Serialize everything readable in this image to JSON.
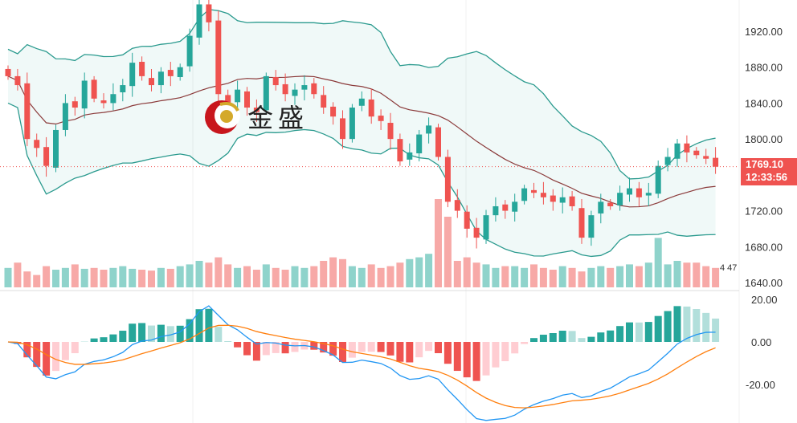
{
  "chart_data": {
    "type": "candlestick",
    "title": "",
    "price_axis": {
      "ticks": [
        "1920.00",
        "1880.00",
        "1840.00",
        "1800.00",
        "1760.00",
        "1720.00",
        "1680.00",
        "1640.00"
      ],
      "range": [
        1640,
        1920
      ]
    },
    "macd_axis": {
      "ticks": [
        "20.00",
        "0.00",
        "-20.00"
      ],
      "range": [
        -20,
        20
      ]
    },
    "last_price": "1769.10",
    "countdown": "12:33:56",
    "volume_legend": "4 47",
    "closes": [
      1870,
      1860,
      1800,
      1790,
      1770,
      1810,
      1840,
      1835,
      1865,
      1845,
      1840,
      1850,
      1860,
      1885,
      1870,
      1860,
      1875,
      1870,
      1880,
      1915,
      1950,
      1930,
      1850,
      1840,
      1855,
      1835,
      1830,
      1870,
      1860,
      1850,
      1855,
      1860,
      1850,
      1835,
      1825,
      1800,
      1835,
      1845,
      1825,
      1820,
      1800,
      1775,
      1785,
      1805,
      1815,
      1780,
      1730,
      1720,
      1700,
      1690,
      1715,
      1725,
      1720,
      1730,
      1745,
      1740,
      1735,
      1730,
      1735,
      1725,
      1690,
      1715,
      1730,
      1725,
      1740,
      1745,
      1735,
      1740,
      1770,
      1780,
      1795,
      1785,
      1782,
      1778,
      1769.1
    ],
    "volumes": [
      22,
      28,
      18,
      14,
      24,
      20,
      22,
      26,
      21,
      22,
      20,
      22,
      24,
      21,
      20,
      19,
      22,
      21,
      24,
      26,
      30,
      28,
      34,
      26,
      22,
      24,
      20,
      26,
      22,
      20,
      24,
      22,
      24,
      30,
      34,
      32,
      24,
      22,
      26,
      22,
      24,
      28,
      32,
      34,
      38,
      100,
      80,
      30,
      34,
      28,
      26,
      22,
      24,
      24,
      22,
      26,
      22,
      20,
      24,
      22,
      18,
      22,
      24,
      22,
      24,
      26,
      24,
      28,
      56,
      26,
      30,
      28,
      28,
      24,
      22
    ],
    "indicators": [
      "Bollinger Bands (20,2)",
      "Moving Average (20)",
      "MACD (12,26,9)"
    ],
    "colors": {
      "up": "#26a69a",
      "down": "#ef5350",
      "band": "#2a9a8e",
      "ma": "#8b3a3a",
      "macd": "#2196f3",
      "signal": "#ff7f0e"
    }
  },
  "watermark": {
    "brand": "金盛"
  }
}
